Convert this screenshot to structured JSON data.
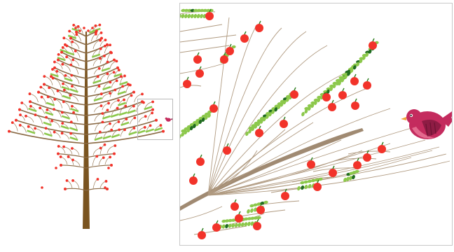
{
  "scene": {
    "description_tags": [
      "tree-illustration",
      "zoom-inset",
      "bird"
    ],
    "colors": {
      "trunk": "#7a5420",
      "branch": "#a08a72",
      "apple": "#f2332a",
      "apple_stem": "#2e7d1e",
      "leaf_light": "#8cc84b",
      "leaf_dark": "#1f6b1f",
      "bird_body": "#c42b5e",
      "bird_wing": "#8e1c44",
      "bird_beak": "#f2a23a",
      "frame_border": "#c8c8c8"
    }
  },
  "overview": {
    "label": ""
  },
  "zoom": {
    "label": ""
  }
}
